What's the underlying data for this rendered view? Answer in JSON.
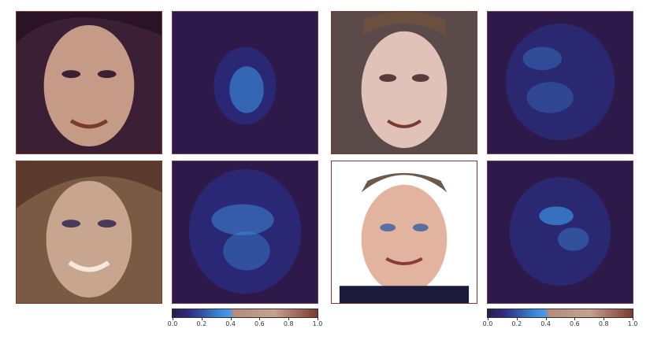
{
  "figure": {
    "rows": [
      {
        "left_pair": {
          "face": "woman-dark-hair-photo",
          "heatmap": "saliency-map-concentrated-center"
        },
        "right_pair": {
          "face": "man-short-hair-photo",
          "heatmap": "saliency-map-diffuse-face"
        }
      },
      {
        "left_pair": {
          "face": "woman-light-brown-hair-photo",
          "heatmap": "saliency-map-diffuse-face"
        },
        "right_pair": {
          "face": "man-blond-hair-white-background-photo",
          "heatmap": "saliency-map-eyes-nose"
        }
      }
    ],
    "colorbars": [
      {
        "ticks": [
          "0.0",
          "0.2",
          "0.4",
          "0.6",
          "0.8",
          "1.0"
        ]
      },
      {
        "ticks": [
          "0.0",
          "0.2",
          "0.4",
          "0.6",
          "0.8",
          "1.0"
        ]
      }
    ],
    "colors": {
      "heatmap_background": "#2d1a4a",
      "heatmap_low": "#2a2f86",
      "heatmap_mid": "#3d8fe0",
      "heatmap_high": "#b58a78",
      "heatmap_max": "#7a3b2e",
      "panel_border": "#7a3b2e"
    }
  }
}
